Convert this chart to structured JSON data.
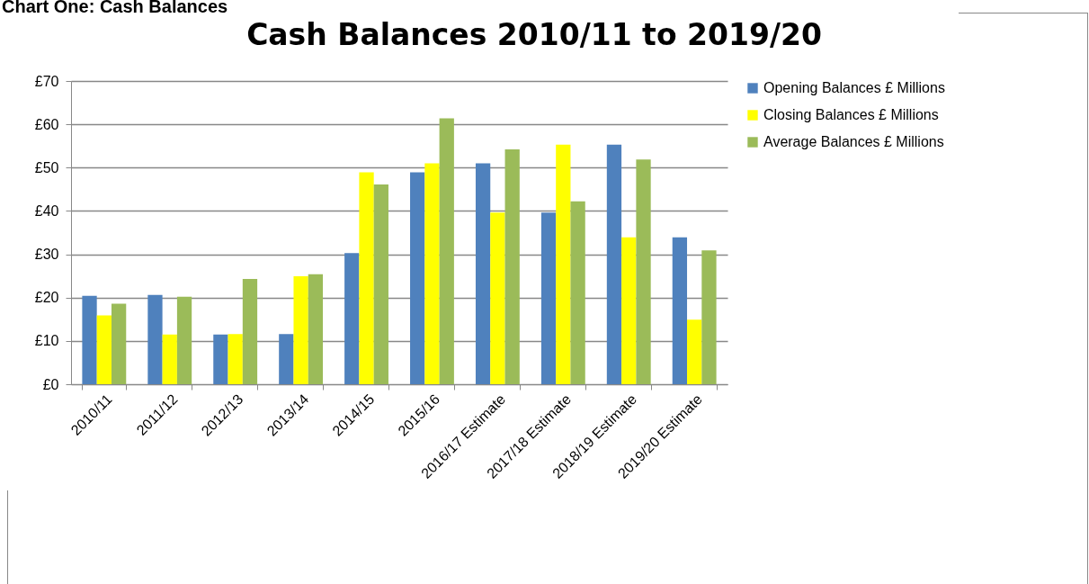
{
  "chart_data": {
    "type": "bar",
    "title": "Cash Balances 2010/11 to 2019/20",
    "annotations": [
      "Chart One: Cash Balances"
    ],
    "categories": [
      "2010/11",
      "2011/12",
      "2012/13",
      "2013/14",
      "2014/15",
      "2015/16",
      "2016/17 Estimate",
      "2017/18 Estimate",
      "2018/19 Estimate",
      "2019/20 Estimate"
    ],
    "series": [
      {
        "name": "Opening Balances  £ Millions",
        "color": "#4f81bd",
        "values": [
          20.4,
          20.6,
          11.5,
          11.6,
          30.3,
          48.9,
          51.0,
          39.6,
          55.3,
          33.9
        ]
      },
      {
        "name": "Closing Balances £ Millions",
        "color": "#ffff00",
        "values": [
          15.9,
          11.5,
          11.6,
          24.9,
          48.9,
          51.0,
          39.6,
          55.3,
          33.9,
          14.9
        ]
      },
      {
        "name": "Average Balances £ Millions",
        "color": "#9bbb59",
        "values": [
          18.6,
          20.2,
          24.3,
          25.4,
          46.1,
          61.4,
          54.2,
          42.2,
          51.9,
          30.9
        ]
      }
    ],
    "ylim": [
      0,
      70
    ],
    "yticks": [
      {
        "value": 0,
        "label": "£0"
      },
      {
        "value": 10,
        "label": "£10"
      },
      {
        "value": 20,
        "label": "£20"
      },
      {
        "value": 30,
        "label": "£30"
      },
      {
        "value": 40,
        "label": "£40"
      },
      {
        "value": 50,
        "label": "£50"
      },
      {
        "value": 60,
        "label": "£60"
      },
      {
        "value": 70,
        "label": "£70"
      }
    ],
    "grid": "y",
    "legend": "right"
  }
}
